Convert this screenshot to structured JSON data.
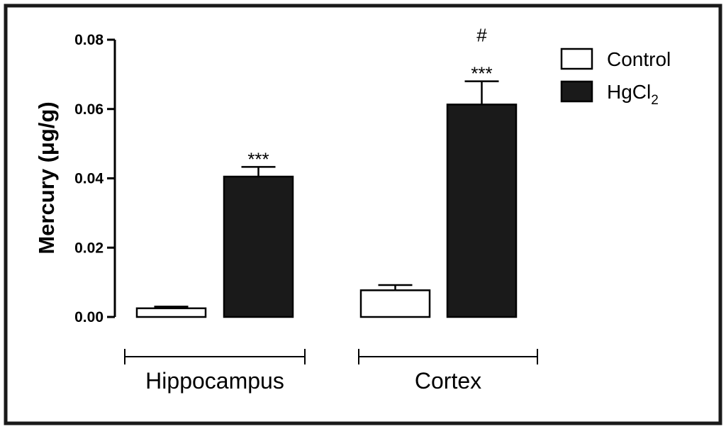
{
  "chart_data": {
    "type": "bar",
    "title": "",
    "xlabel": "",
    "ylabel": "Mercury (μg/g)",
    "ylim": [
      0,
      0.08
    ],
    "yticks": [
      "0.00",
      "0.02",
      "0.04",
      "0.06",
      "0.08"
    ],
    "categories": [
      "Hippocampus",
      "Cortex"
    ],
    "series": [
      {
        "name": "Control",
        "color": "#ffffff",
        "values": [
          0.0025,
          0.0077
        ],
        "errors": [
          0.0005,
          0.0015
        ]
      },
      {
        "name": "HgCl2",
        "color": "#1a1a1a",
        "values": [
          0.0405,
          0.0613
        ],
        "errors": [
          0.0028,
          0.0067
        ]
      }
    ],
    "annotations": [
      {
        "series": 1,
        "category": 0,
        "lines": [
          "***"
        ]
      },
      {
        "series": 1,
        "category": 1,
        "lines": [
          "#",
          "***"
        ]
      }
    ],
    "legend": {
      "position": "top-right",
      "entries": [
        {
          "base": "Control",
          "sub": ""
        },
        {
          "base": "HgCl",
          "sub": "2"
        }
      ]
    },
    "grid": false
  }
}
